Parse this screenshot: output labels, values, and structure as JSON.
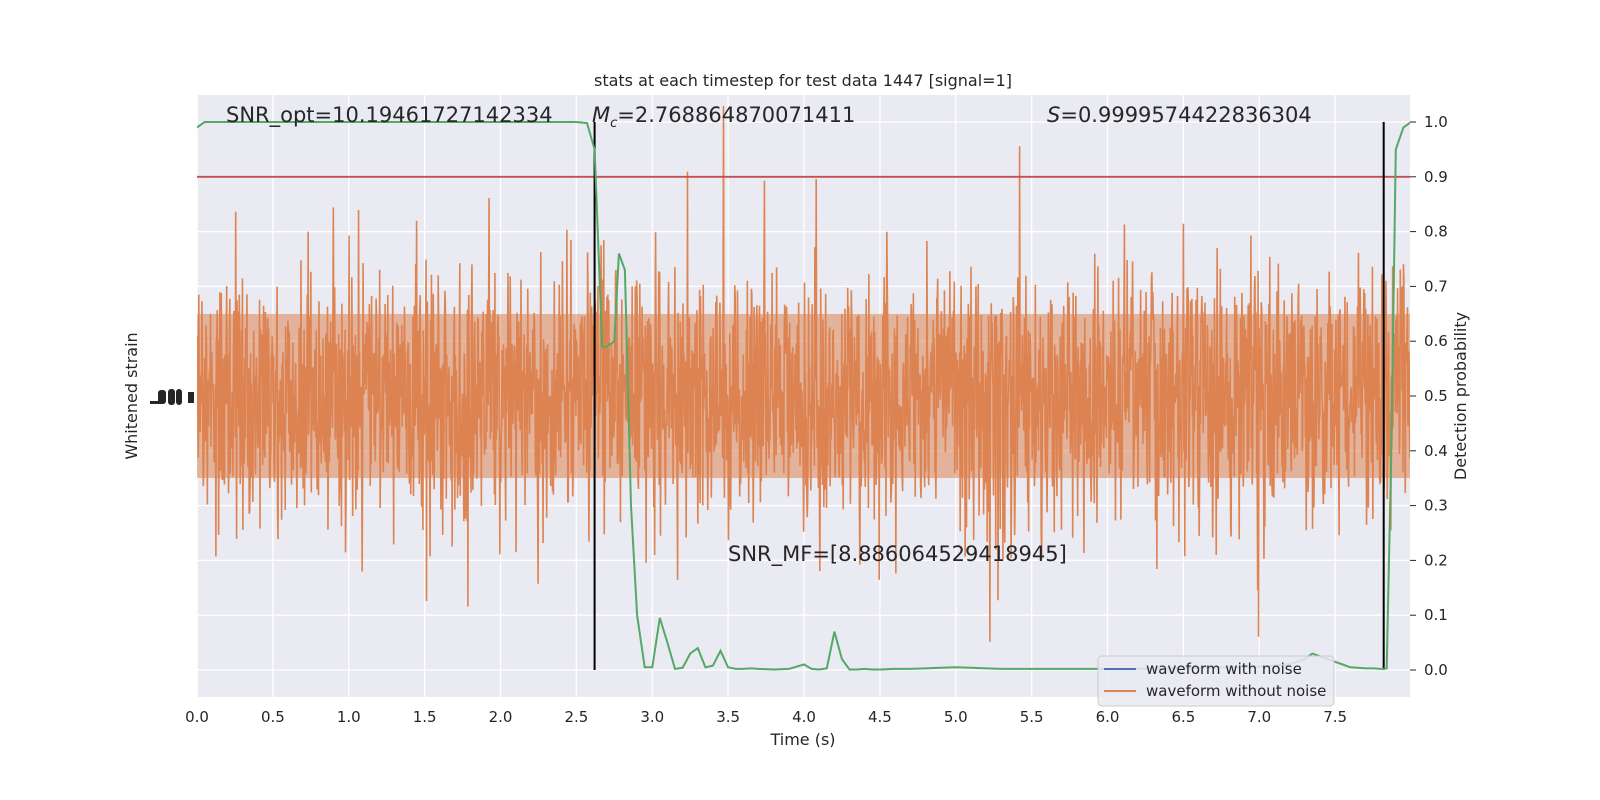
{
  "chart_data": {
    "type": "line",
    "title": "stats at each timestep for test data 1447 [signal=1]",
    "xlabel": "Time (s)",
    "ylabel_left": "Whitened strain",
    "ylabel_right": "Detection probability",
    "xlim": [
      0,
      8
    ],
    "ylim_right": [
      -0.05,
      1.05
    ],
    "x_ticks": [
      "0.0",
      "0.5",
      "1.0",
      "1.5",
      "2.0",
      "2.5",
      "3.0",
      "3.5",
      "4.0",
      "4.5",
      "5.0",
      "5.5",
      "6.0",
      "6.5",
      "7.0",
      "7.5"
    ],
    "y_ticks_right": [
      "0.0",
      "0.1",
      "0.2",
      "0.3",
      "0.4",
      "0.5",
      "0.6",
      "0.7",
      "0.8",
      "0.9",
      "1.0"
    ],
    "grid": true,
    "legend": {
      "placement": "lower-right",
      "entries": [
        {
          "label": "waveform with noise",
          "color": "#4c72b0"
        },
        {
          "label": "waveform without noise",
          "color": "#dd8452"
        }
      ]
    },
    "annotations": {
      "snr_opt": "SNR_opt=10.19461727142334",
      "mc_value": "=2.768864870071411",
      "s_value": "=0.9999574422836304",
      "snr_mf": "SNR_MF=[8.886064529418945]"
    },
    "threshold": 0.9,
    "vlines": [
      2.62,
      7.82
    ],
    "detection_probability": {
      "color": "#55a868",
      "x": [
        0.0,
        0.05,
        0.1,
        0.2,
        0.5,
        1.0,
        1.5,
        2.0,
        2.3,
        2.5,
        2.57,
        2.62,
        2.67,
        2.7,
        2.75,
        2.78,
        2.82,
        2.86,
        2.9,
        2.95,
        3.0,
        3.05,
        3.1,
        3.15,
        3.2,
        3.25,
        3.3,
        3.35,
        3.4,
        3.45,
        3.5,
        3.55,
        3.6,
        3.65,
        3.7,
        3.8,
        3.9,
        4.0,
        4.05,
        4.1,
        4.15,
        4.2,
        4.25,
        4.3,
        4.35,
        4.4,
        4.45,
        4.5,
        4.6,
        4.7,
        4.8,
        4.9,
        5.0,
        5.1,
        5.2,
        5.3,
        5.4,
        5.5,
        5.6,
        5.7,
        5.8,
        5.9,
        6.0,
        6.2,
        6.4,
        6.6,
        6.8,
        7.0,
        7.2,
        7.3,
        7.35,
        7.4,
        7.45,
        7.5,
        7.55,
        7.6,
        7.65,
        7.7,
        7.75,
        7.8,
        7.82,
        7.84,
        7.87,
        7.9,
        7.95,
        8.0
      ],
      "y": [
        0.99,
        1.0,
        1.0,
        1.0,
        1.0,
        1.0,
        1.0,
        1.0,
        1.0,
        1.0,
        0.998,
        0.95,
        0.59,
        0.59,
        0.6,
        0.76,
        0.73,
        0.3,
        0.1,
        0.005,
        0.005,
        0.095,
        0.05,
        0.002,
        0.004,
        0.03,
        0.04,
        0.005,
        0.008,
        0.035,
        0.005,
        0.002,
        0.002,
        0.003,
        0.002,
        0.001,
        0.002,
        0.01,
        0.002,
        0.001,
        0.003,
        0.07,
        0.02,
        0.001,
        0.001,
        0.002,
        0.001,
        0.001,
        0.002,
        0.002,
        0.003,
        0.004,
        0.005,
        0.004,
        0.003,
        0.002,
        0.002,
        0.002,
        0.002,
        0.002,
        0.002,
        0.002,
        0.002,
        0.002,
        0.003,
        0.004,
        0.005,
        0.006,
        0.01,
        0.02,
        0.03,
        0.025,
        0.02,
        0.015,
        0.01,
        0.005,
        0.004,
        0.003,
        0.003,
        0.002,
        0.002,
        0.003,
        0.4,
        0.95,
        0.99,
        1.0
      ]
    }
  }
}
